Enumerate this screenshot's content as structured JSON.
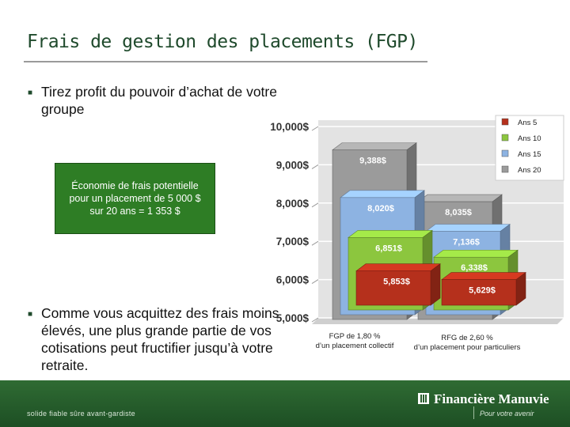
{
  "slide": {
    "title": "Frais de gestion des placements (FGP)",
    "bullet1": "Tirez profit du pouvoir d’achat de votre groupe",
    "bullet2": "Comme vous acquittez des frais moins élevés, une plus grande partie de vos cotisations peut fructifier jusqu’à votre retraite.",
    "callout": "Économie de frais potentielle pour un placement de 5 000 $ sur 20 ans = 1 353 $"
  },
  "chart_data": {
    "type": "bar",
    "categories": [
      "FGP de 1,80 % d’un placement collectif",
      "RFG de 2,60 % d’un placement pour particuliers"
    ],
    "series": [
      {
        "name": "Ans 5",
        "color": "#b5301c",
        "values": [
          5853,
          5629
        ],
        "labels": [
          "5,853$",
          "5,629$"
        ]
      },
      {
        "name": "Ans 10",
        "color": "#8cc63e",
        "values": [
          6851,
          6338
        ],
        "labels": [
          "6,851$",
          "6,338$"
        ]
      },
      {
        "name": "Ans 15",
        "color": "#8db3e2",
        "values": [
          8020,
          7136
        ],
        "labels": [
          "8,020$",
          "7,136$"
        ]
      },
      {
        "name": "Ans 20",
        "color": "#9b9b9b",
        "values": [
          9388,
          8035
        ],
        "labels": [
          "9,388$",
          "8,035$"
        ]
      }
    ],
    "yticks": [
      "5,000$",
      "6,000$",
      "7,000$",
      "8,000$",
      "9,000$",
      "10,000$"
    ],
    "ylim": [
      5000,
      10000
    ],
    "legend_position": "top-right"
  },
  "footer": {
    "tagline": "solide   fiable   sûre   avant-gardiste",
    "brand": "Financière Manuvie",
    "slogan": "Pour votre avenir"
  }
}
